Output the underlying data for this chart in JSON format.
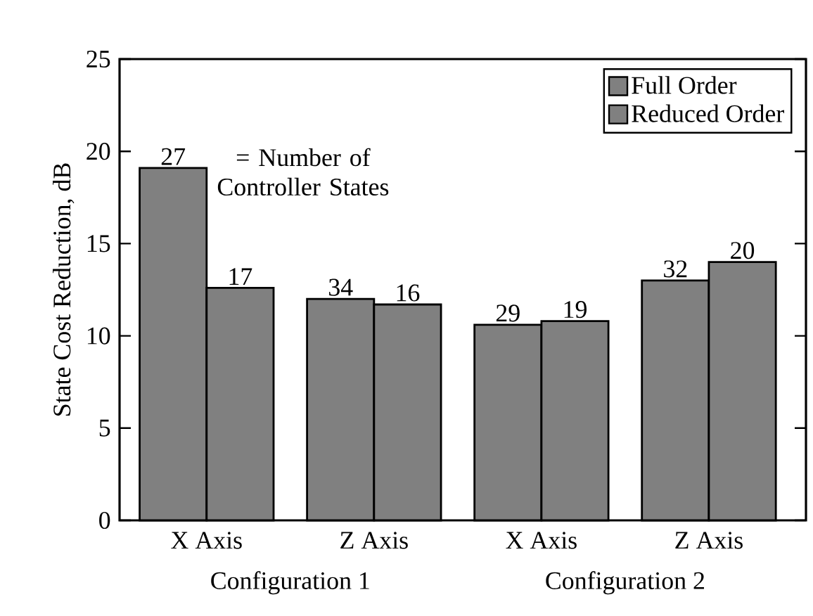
{
  "chart_data": {
    "type": "bar",
    "ylabel": "State Cost Reduction, dB",
    "categories": [
      "X Axis",
      "Z Axis",
      "X Axis",
      "Z Axis"
    ],
    "series": [
      {
        "name": "Full Order",
        "color": "#808080",
        "values": [
          19.1,
          12.0,
          10.6,
          13.0
        ]
      },
      {
        "name": "Reduced Order",
        "color": "#808080",
        "values": [
          12.6,
          11.7,
          10.8,
          14.0
        ]
      }
    ],
    "annotations": [
      "27",
      "17",
      "34",
      "16",
      "29",
      "19",
      "32",
      "20",
      "= Number of Controller States",
      "Configuration 1",
      "Configuration 2"
    ],
    "ylim": [
      0,
      25
    ],
    "yticks": [
      0,
      5,
      10,
      15,
      20,
      25
    ],
    "legend": "top right",
    "grid": false
  }
}
